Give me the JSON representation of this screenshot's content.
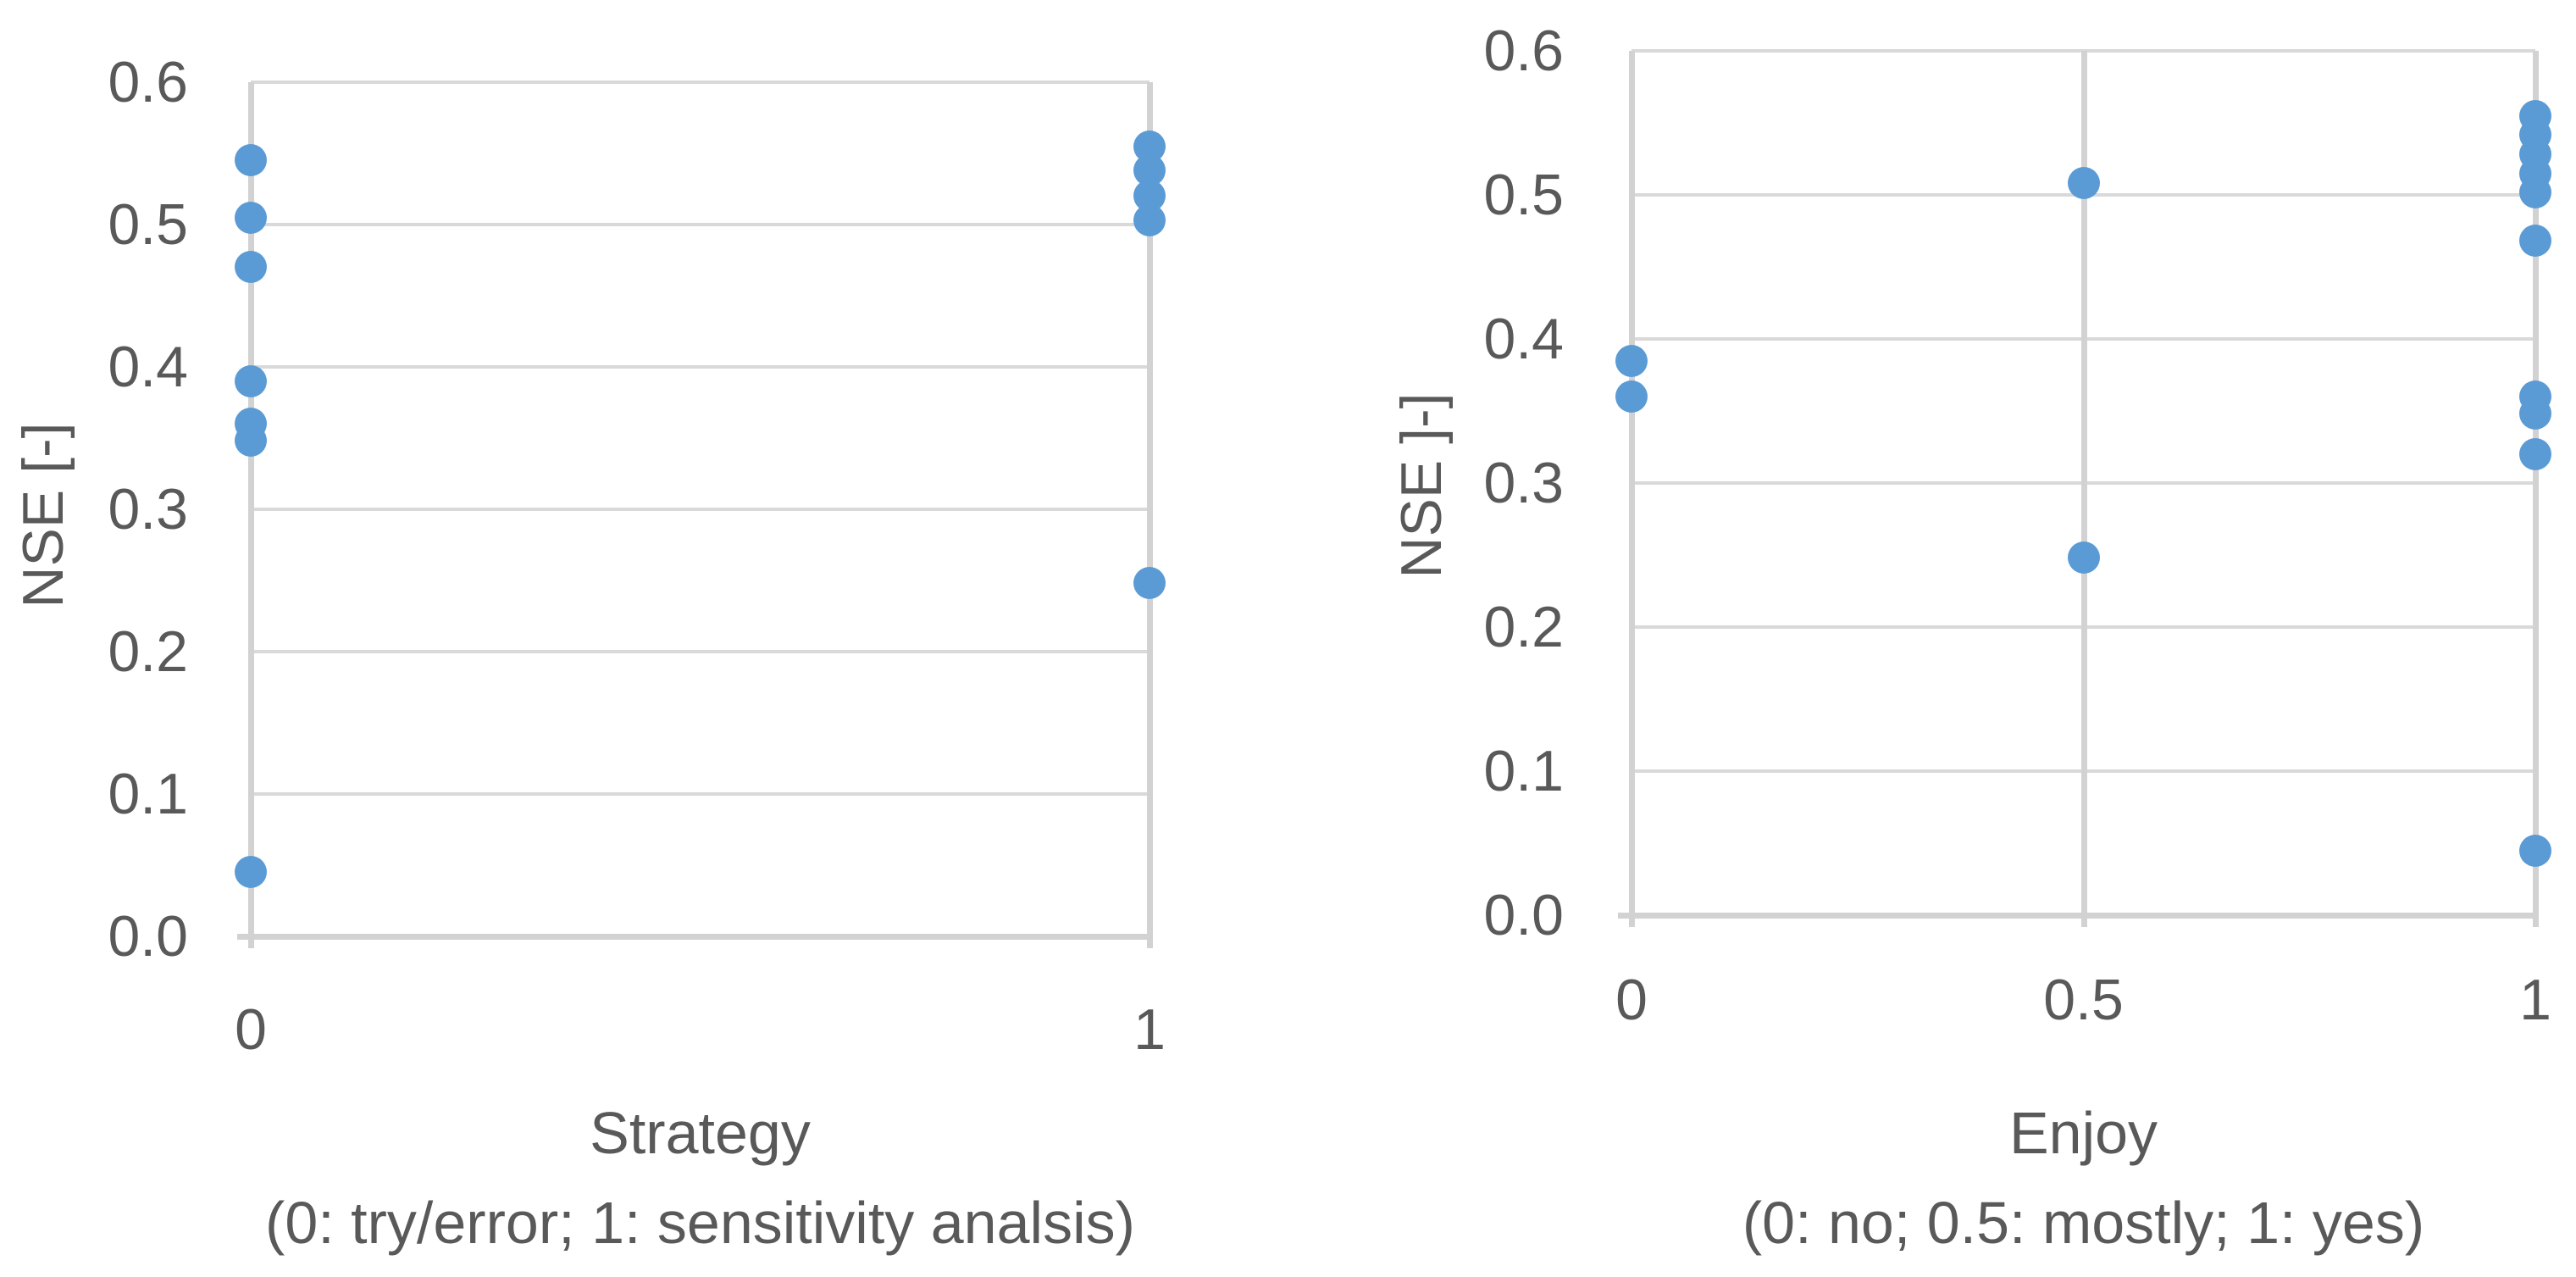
{
  "style": {
    "background": "#FFFFFF",
    "marker_color": "#5B9BD5",
    "grid_color": "#D9D9D9",
    "axis_color": "#D2D2D2",
    "text_color": "#595959"
  },
  "chart_data": [
    {
      "type": "scatter",
      "title": "Strategy",
      "subtitle": "(0: try/error; 1: sensitivity analsis)",
      "ylabel": "NSE [-]",
      "xlabel": "Strategy",
      "xlim": [
        0,
        1
      ],
      "ylim": [
        0,
        0.6
      ],
      "grid": "horizontal gridlines every 0.1; vertical lines at x ticks",
      "legend": "none",
      "yticks": [
        {
          "value": 0.0,
          "label": "0.0"
        },
        {
          "value": 0.1,
          "label": "0.1"
        },
        {
          "value": 0.2,
          "label": "0.2"
        },
        {
          "value": 0.3,
          "label": "0.3"
        },
        {
          "value": 0.4,
          "label": "0.4"
        },
        {
          "value": 0.5,
          "label": "0.5"
        },
        {
          "value": 0.6,
          "label": "0.6"
        }
      ],
      "xticks": [
        {
          "value": 0,
          "label": "0"
        },
        {
          "value": 1,
          "label": "1"
        }
      ],
      "points": [
        {
          "x": 0,
          "y": 0.545
        },
        {
          "x": 0,
          "y": 0.505
        },
        {
          "x": 0,
          "y": 0.47
        },
        {
          "x": 0,
          "y": 0.39
        },
        {
          "x": 0,
          "y": 0.36
        },
        {
          "x": 0,
          "y": 0.348
        },
        {
          "x": 0,
          "y": 0.045
        },
        {
          "x": 1,
          "y": 0.555
        },
        {
          "x": 1,
          "y": 0.538
        },
        {
          "x": 1,
          "y": 0.52
        },
        {
          "x": 1,
          "y": 0.503
        },
        {
          "x": 1,
          "y": 0.248
        }
      ]
    },
    {
      "type": "scatter",
      "title": "Enjoy",
      "subtitle": "(0: no; 0.5: mostly; 1: yes)",
      "ylabel": "NSE ]-]",
      "xlabel": "Enjoy",
      "xlim": [
        0,
        1
      ],
      "ylim": [
        0,
        0.6
      ],
      "grid": "horizontal gridlines every 0.1; vertical lines at x ticks",
      "legend": "none",
      "yticks": [
        {
          "value": 0.0,
          "label": "0.0"
        },
        {
          "value": 0.1,
          "label": "0.1"
        },
        {
          "value": 0.2,
          "label": "0.2"
        },
        {
          "value": 0.3,
          "label": "0.3"
        },
        {
          "value": 0.4,
          "label": "0.4"
        },
        {
          "value": 0.5,
          "label": "0.5"
        },
        {
          "value": 0.6,
          "label": "0.6"
        }
      ],
      "xticks": [
        {
          "value": 0,
          "label": "0"
        },
        {
          "value": 0.5,
          "label": "0.5"
        },
        {
          "value": 1,
          "label": "1"
        }
      ],
      "points": [
        {
          "x": 0,
          "y": 0.385
        },
        {
          "x": 0,
          "y": 0.36
        },
        {
          "x": 0.5,
          "y": 0.508
        },
        {
          "x": 0.5,
          "y": 0.248
        },
        {
          "x": 1,
          "y": 0.555
        },
        {
          "x": 1,
          "y": 0.542
        },
        {
          "x": 1,
          "y": 0.528
        },
        {
          "x": 1,
          "y": 0.515
        },
        {
          "x": 1,
          "y": 0.502
        },
        {
          "x": 1,
          "y": 0.468
        },
        {
          "x": 1,
          "y": 0.36
        },
        {
          "x": 1,
          "y": 0.348
        },
        {
          "x": 1,
          "y": 0.32
        },
        {
          "x": 1,
          "y": 0.045
        }
      ]
    }
  ]
}
